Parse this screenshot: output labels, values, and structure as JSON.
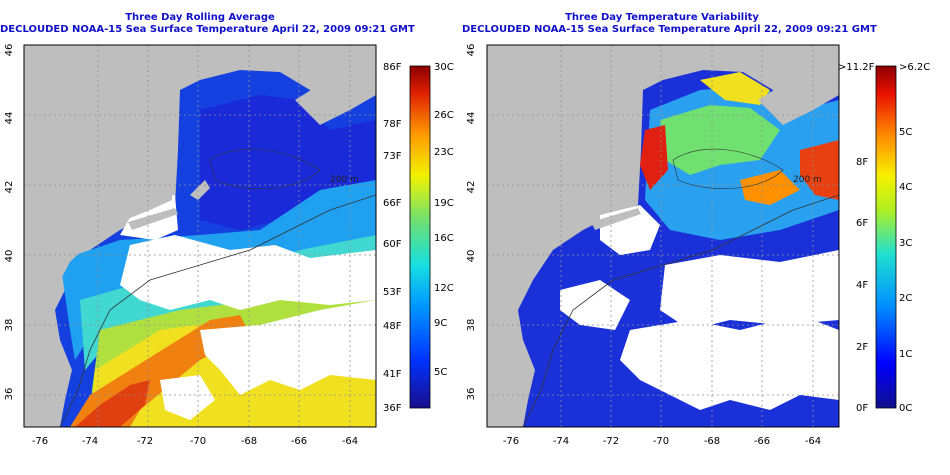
{
  "left_panel": {
    "title_line1": "Three Day Rolling Average",
    "title_line2": "DECLOUDED NOAA-15 Sea Surface Temperature April 22, 2009 09:21 GMT",
    "depth_label": "200 m",
    "colorbar": {
      "left_labels": [
        "86F",
        "78F",
        "73F",
        "66F",
        "60F",
        "53F",
        "48F",
        "41F",
        "36F"
      ],
      "right_labels": [
        "30C",
        "26C",
        "23C",
        "19C",
        "16C",
        "12C",
        "9C",
        "5C"
      ]
    }
  },
  "right_panel": {
    "title_line1": "Three Day Temperature Variability",
    "title_line2": "DECLOUDED NOAA-15 Sea Surface Temperature April 22, 2009 09:21 GMT",
    "depth_label": "200 m",
    "colorbar": {
      "left_labels": [
        ">11.2F",
        "8F",
        "6F",
        "4F",
        "2F",
        "0F"
      ],
      "right_labels": [
        ">6.2C",
        "5C",
        "4C",
        "3C",
        "2C",
        "1C",
        "0C"
      ]
    }
  },
  "axes": {
    "lon_ticks": [
      "-76",
      "-74",
      "-72",
      "-70",
      "-68",
      "-66",
      "-64"
    ],
    "lat_ticks": [
      "46",
      "44",
      "42",
      "40",
      "38",
      "36"
    ]
  },
  "colors": {
    "land": "#bebebe",
    "cloud": "#ffffff",
    "title": "#1010c8"
  }
}
